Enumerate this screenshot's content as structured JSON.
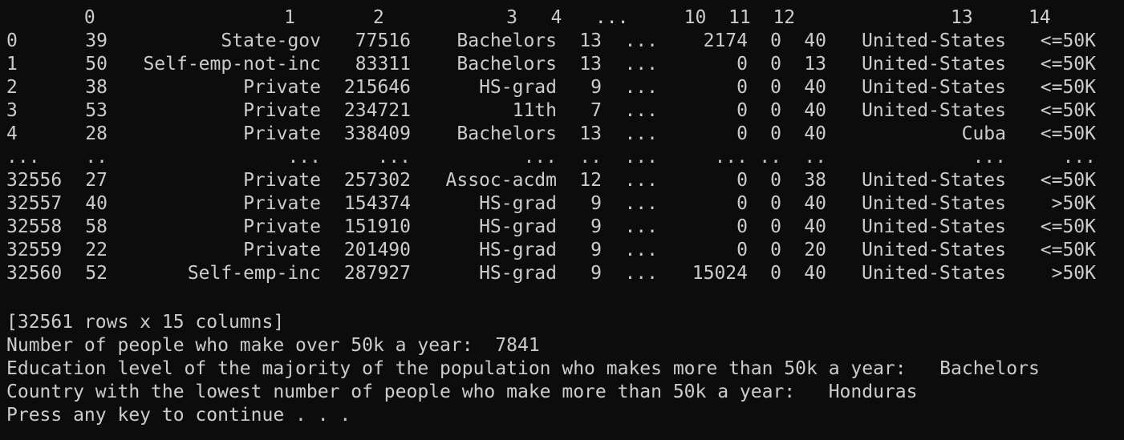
{
  "window": {
    "background": "#0c0c0c",
    "foreground": "#cccccc"
  },
  "dataframe": {
    "header_line": "       0                 1       2           3   4   ...     10  11  12              13     14",
    "rows": [
      [
        "0",
        "39",
        "State-gov",
        "77516",
        "Bachelors",
        "13",
        "...",
        "2174",
        "0",
        "40",
        "United-States",
        "<=50K"
      ],
      [
        "1",
        "50",
        "Self-emp-not-inc",
        "83311",
        "Bachelors",
        "13",
        "...",
        "0",
        "0",
        "13",
        "United-States",
        "<=50K"
      ],
      [
        "2",
        "38",
        "Private",
        "215646",
        "HS-grad",
        "9",
        "...",
        "0",
        "0",
        "40",
        "United-States",
        "<=50K"
      ],
      [
        "3",
        "53",
        "Private",
        "234721",
        "11th",
        "7",
        "...",
        "0",
        "0",
        "40",
        "United-States",
        "<=50K"
      ],
      [
        "4",
        "28",
        "Private",
        "338409",
        "Bachelors",
        "13",
        "...",
        "0",
        "0",
        "40",
        "Cuba",
        "<=50K"
      ],
      [
        "...",
        "..",
        "...",
        "...",
        "...",
        "..",
        "...",
        "...",
        "..",
        "..",
        "...",
        "..."
      ],
      [
        "32556",
        "27",
        "Private",
        "257302",
        "Assoc-acdm",
        "12",
        "...",
        "0",
        "0",
        "38",
        "United-States",
        "<=50K"
      ],
      [
        "32557",
        "40",
        "Private",
        "154374",
        "HS-grad",
        "9",
        "...",
        "0",
        "0",
        "40",
        "United-States",
        ">50K"
      ],
      [
        "32558",
        "58",
        "Private",
        "151910",
        "HS-grad",
        "9",
        "...",
        "0",
        "0",
        "40",
        "United-States",
        "<=50K"
      ],
      [
        "32559",
        "22",
        "Private",
        "201490",
        "HS-grad",
        "9",
        "...",
        "0",
        "0",
        "20",
        "United-States",
        "<=50K"
      ],
      [
        "32560",
        "52",
        "Self-emp-inc",
        "287927",
        "HS-grad",
        "9",
        "...",
        "15024",
        "0",
        "40",
        "United-States",
        ">50K"
      ]
    ]
  },
  "summary": {
    "shape": "[32561 rows x 15 columns]",
    "over_50k": "Number of people who make over 50k a year:  7841",
    "education": "Education level of the majority of the population who makes more than 50k a year:   Bachelors",
    "country": "Country with the lowest number of people who make more than 50k a year:   Honduras",
    "prompt": "Press any key to continue . . ."
  }
}
